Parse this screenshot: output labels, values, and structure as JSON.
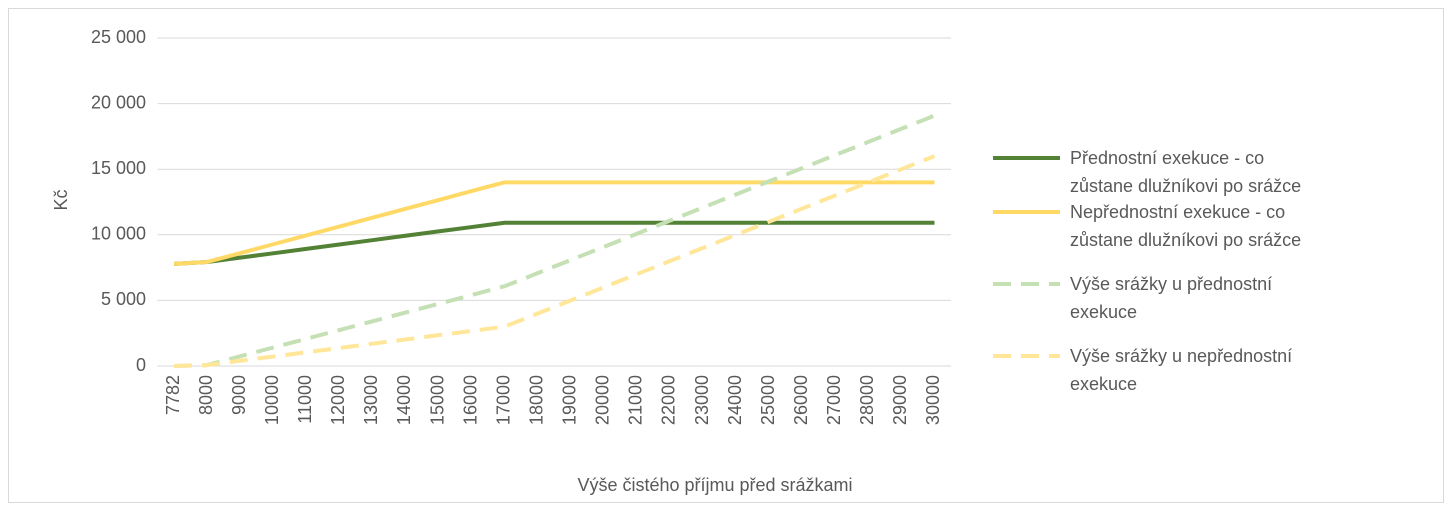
{
  "chart_data": {
    "type": "line",
    "y_label": "Kč",
    "x_label": "Výše čistého příjmu před srážkami",
    "categories": [
      "7782",
      "8000",
      "9000",
      "10000",
      "11000",
      "12000",
      "13000",
      "14000",
      "15000",
      "16000",
      "17000",
      "18000",
      "19000",
      "20000",
      "21000",
      "22000",
      "23000",
      "24000",
      "25000",
      "26000",
      "27000",
      "28000",
      "29000",
      "30000"
    ],
    "series": [
      {
        "name": "Přednostní exekuce - co zůstane dlužníkovi po srážce",
        "color": "#538135",
        "dash": false,
        "values": [
          7782,
          7930,
          8260,
          8590,
          8930,
          9260,
          9590,
          9930,
          10260,
          10590,
          10920,
          10920,
          10920,
          10920,
          10920,
          10920,
          10920,
          10920,
          10920,
          10920,
          10920,
          10920,
          10920,
          10920
        ]
      },
      {
        "name": "Nepřednostní exekuce - co zůstane dlužníkovi po srážce",
        "color": "#ffd966",
        "dash": false,
        "values": [
          7782,
          7930,
          8600,
          9280,
          9950,
          10630,
          11300,
          11980,
          12650,
          13330,
          14000,
          14000,
          14000,
          14000,
          14000,
          14000,
          14000,
          14000,
          14000,
          14000,
          14000,
          14000,
          14000,
          14000
        ]
      },
      {
        "name": "Výše srážky u přednostní exekuce",
        "color": "#c5e0b4",
        "dash": true,
        "values": [
          0,
          70,
          740,
          1410,
          2070,
          2740,
          3410,
          4070,
          4740,
          5410,
          6080,
          7080,
          8080,
          9080,
          10080,
          11080,
          12080,
          13080,
          14080,
          15080,
          16080,
          17080,
          18080,
          19080
        ]
      },
      {
        "name": "Výše srážky u nepřednostní exekuce",
        "color": "#ffe699",
        "dash": true,
        "values": [
          0,
          70,
          400,
          720,
          1050,
          1370,
          1700,
          2020,
          2350,
          2670,
          3000,
          4000,
          5000,
          6000,
          7000,
          8000,
          9000,
          10000,
          11000,
          12000,
          13000,
          14000,
          15000,
          16000
        ]
      }
    ],
    "ylim": [
      0,
      25000
    ],
    "yticks": [
      0,
      {
        "value": 5000,
        "label": "5 000"
      },
      {
        "value": 10000,
        "label": "10 000"
      },
      {
        "value": 15000,
        "label": "15 000"
      },
      {
        "value": 20000,
        "label": "20 000"
      },
      {
        "value": 25000,
        "label": "25 000"
      }
    ],
    "grid": true,
    "legend": "right"
  }
}
